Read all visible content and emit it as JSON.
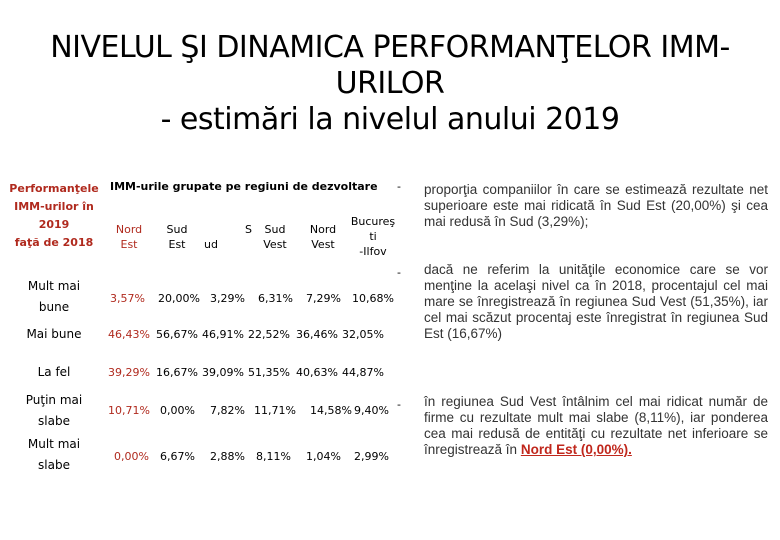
{
  "title": {
    "line1": "NIVELUL ŞI DINAMICA PERFORMANŢELOR IMM-",
    "line2": "URILOR",
    "line3": "- estimări la nivelul anului 2019"
  },
  "table": {
    "corner_header": {
      "line1": "Performanţele",
      "line2": "IMM-urilor în",
      "line3": "2019",
      "line4": "faţă de 2018"
    },
    "group_header": "IMM-urile grupate pe regiuni de dezvoltare",
    "regions": [
      {
        "l1": "Nord",
        "l2": "Est"
      },
      {
        "l1": "Sud",
        "l2": "Est"
      },
      {
        "l1": "S",
        "l2": "ud"
      },
      {
        "l1": "Sud",
        "l2": "Vest"
      },
      {
        "l1": "Nord",
        "l2": "Vest"
      },
      {
        "l1": "Bucureş",
        "l2": "ti",
        "l3": "-Ilfov"
      }
    ],
    "rows": [
      {
        "label1": "Mult mai",
        "label2": "bune",
        "values": [
          "3,57%",
          "20,00%",
          "3,29%",
          "6,31%",
          "7,29%",
          "10,68%"
        ]
      },
      {
        "label1": "Mai bune",
        "label2": "",
        "values": [
          "46,43%",
          "56,67%",
          "46,91%",
          "22,52%",
          "36,46%",
          "32,05%"
        ]
      },
      {
        "label1": "La fel",
        "label2": "",
        "values": [
          "39,29%",
          "16,67%",
          "39,09%",
          "51,35%",
          "40,63%",
          "44,87%"
        ]
      },
      {
        "label1": "Puţin mai",
        "label2": "slabe",
        "values": [
          "10,71%",
          "0,00%",
          "7,82%",
          "11,71%",
          "14,58%",
          "9,40%"
        ]
      },
      {
        "label1": "Mult mai",
        "label2": "slabe",
        "values": [
          "0,00%",
          "6,67%",
          "2,88%",
          "8,11%",
          "1,04%",
          "2,99%"
        ]
      }
    ],
    "dash": "-"
  },
  "bullets": {
    "b1": "proporţia companiilor în care se estimează rezultate net superioare este mai ridicată în Sud Est (20,00%) şi cea mai redusă în Sud (3,29%);",
    "b2": "dacă ne referim la unităţile economice care se vor menţine la acelaşi nivel ca în 2018, procentajul cel mai mare se înregistrează în regiunea Sud Vest (51,35%), iar cel mai scăzut procentaj este înregistrat în regiunea Sud Est (16,67%)",
    "b3_main": "în regiunea Sud Vest întâlnim cel mai ridicat număr de firme cu rezultate mult mai slabe (8,11%), iar ponderea cea mai redusă de entităţi cu rezultate net inferioare se înregistrează în",
    "b3_emph": "Nord Est (0,00%)."
  }
}
